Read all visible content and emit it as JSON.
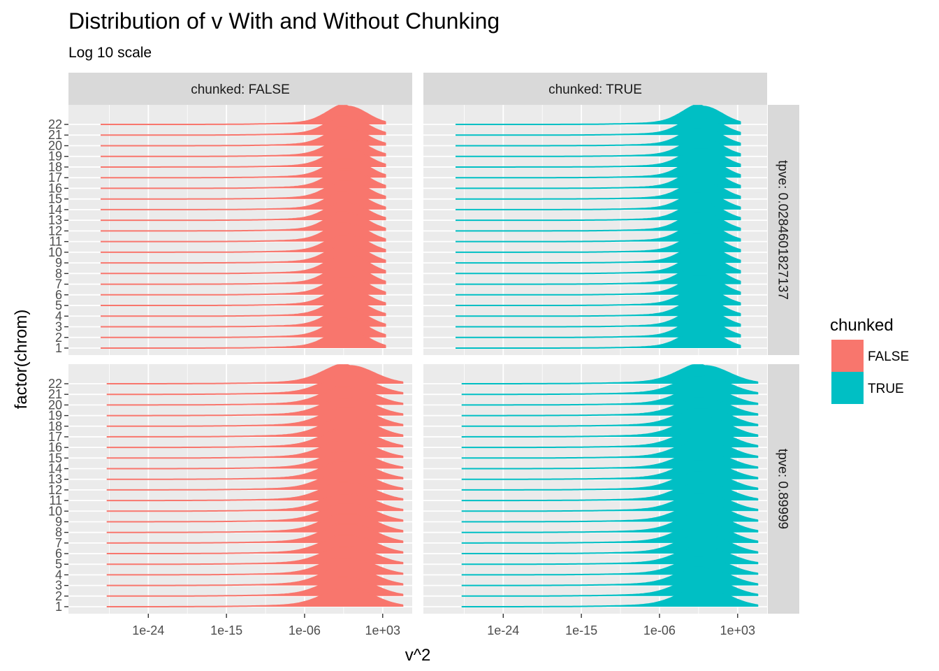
{
  "title": "Distribution of v With and Without Chunking",
  "subtitle": "Log 10 scale",
  "chart_data": {
    "type": "ridgeline",
    "xlabel": "v^2",
    "ylabel": "factor(chrom)",
    "x_scale": "log10",
    "x_ticks": [
      "1e-24",
      "1e-15",
      "1e-06",
      "1e+03"
    ],
    "x_tick_exponents": [
      -24,
      -15,
      -6,
      3
    ],
    "xlim_log10": [
      -33.2,
      6.4
    ],
    "y_categories": [
      "1",
      "2",
      "3",
      "4",
      "5",
      "6",
      "7",
      "8",
      "9",
      "10",
      "11",
      "12",
      "13",
      "14",
      "15",
      "16",
      "17",
      "18",
      "19",
      "20",
      "21",
      "22"
    ],
    "column_facet": {
      "variable": "chunked",
      "labels": [
        "chunked: FALSE",
        "chunked: TRUE"
      ]
    },
    "row_facet": {
      "variable": "tpve",
      "labels": [
        "tpve: 0.0284601827137",
        "tpve: 0.89999"
      ]
    },
    "legend": {
      "title": "chunked",
      "position": "right",
      "entries": [
        {
          "label": "FALSE",
          "color": "#F8766D"
        },
        {
          "label": "TRUE",
          "color": "#00BFC4"
        }
      ]
    },
    "panels": [
      {
        "row": 0,
        "col": 0,
        "chunked": "FALSE",
        "tpve": "0.0284601827137",
        "x_range_log10": [
          -29.5,
          3.3
        ],
        "peak_log10": -1.0,
        "spread": 2.2
      },
      {
        "row": 0,
        "col": 1,
        "chunked": "TRUE",
        "tpve": "0.0284601827137",
        "x_range_log10": [
          -29.5,
          3.3
        ],
        "peak_log10": -1.0,
        "spread": 2.2
      },
      {
        "row": 1,
        "col": 0,
        "chunked": "FALSE",
        "tpve": "0.89999",
        "x_range_log10": [
          -28.8,
          5.3
        ],
        "peak_log10": -0.8,
        "spread": 2.8
      },
      {
        "row": 1,
        "col": 1,
        "chunked": "TRUE",
        "tpve": "0.89999",
        "x_range_log10": [
          -28.8,
          5.3
        ],
        "peak_log10": -0.8,
        "spread": 2.8
      }
    ],
    "grid": true,
    "colors": {
      "FALSE": "#F8766D",
      "TRUE": "#00BFC4",
      "panel_background": "#EBEBEB",
      "strip_background": "#D9D9D9"
    }
  }
}
